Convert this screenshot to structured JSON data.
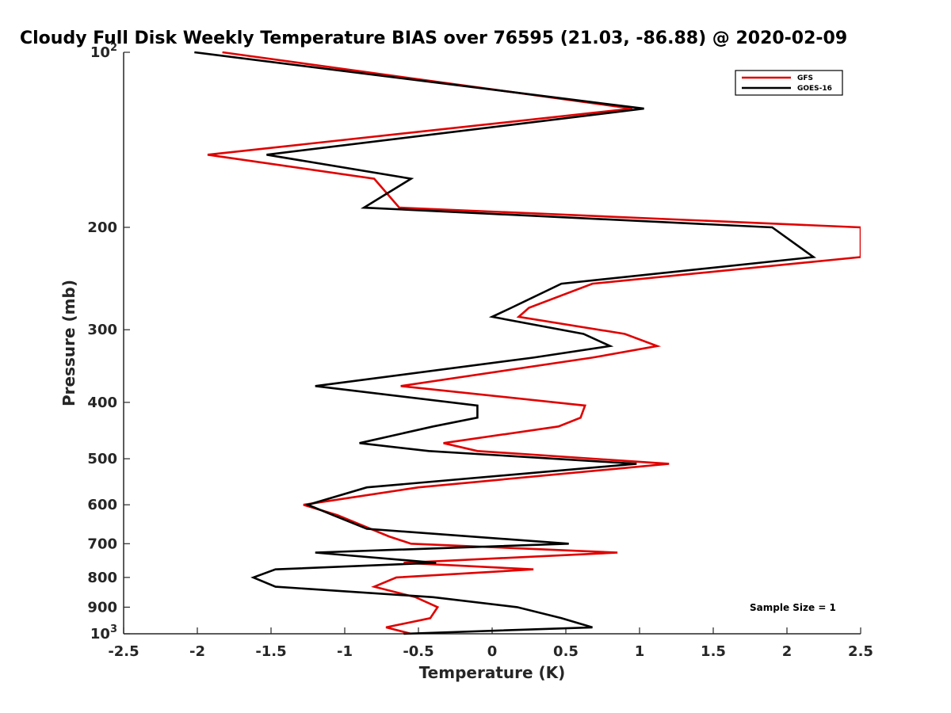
{
  "chart_data": {
    "type": "line",
    "title": "Cloudy Full Disk Weekly Temperature BIAS over 76595 (21.03, -86.88) @ 2020-02-09",
    "xlabel": "Temperature (K)",
    "ylabel": "Pressure (mb)",
    "xlim": [
      -2.5,
      2.5
    ],
    "ylim": [
      100,
      1000
    ],
    "yscale": "log",
    "y_reversed": true,
    "x_ticks": [
      -2.5,
      -2,
      -1.5,
      -1,
      -0.5,
      0,
      0.5,
      1,
      1.5,
      2,
      2.5
    ],
    "x_tick_labels": [
      "-2.5",
      "-2",
      "-1.5",
      "-1",
      "-0.5",
      "0",
      "0.5",
      "1",
      "1.5",
      "2",
      "2.5"
    ],
    "y_ticks": [
      100,
      200,
      300,
      400,
      500,
      600,
      700,
      800,
      900,
      1000
    ],
    "y_tick_labels": [
      "10^2",
      "200",
      "300",
      "400",
      "500",
      "600",
      "700",
      "800",
      "900",
      "10^3"
    ],
    "legend_position": "top-right",
    "annotation": "Sample Size = 1",
    "series": [
      {
        "name": "GFS",
        "color": "#e00000",
        "pressure": [
          100,
          125,
          150,
          165,
          185,
          200,
          225,
          250,
          275,
          285,
          305,
          320,
          335,
          375,
          405,
          425,
          440,
          470,
          485,
          510,
          560,
          600,
          625,
          680,
          700,
          725,
          755,
          775,
          800,
          830,
          865,
          900,
          940,
          975,
          1000
        ],
        "values": [
          -1.83,
          0.95,
          -1.93,
          -0.8,
          -0.63,
          2.5,
          2.5,
          0.68,
          0.25,
          0.18,
          0.9,
          1.12,
          0.68,
          -0.62,
          0.63,
          0.6,
          0.45,
          -0.33,
          -0.1,
          1.2,
          -0.5,
          -1.28,
          -1.05,
          -0.7,
          -0.55,
          0.85,
          -0.6,
          0.28,
          -0.65,
          -0.8,
          -0.52,
          -0.37,
          -0.42,
          -0.72,
          -0.55
        ]
      },
      {
        "name": "GOES-16",
        "color": "#000000",
        "pressure": [
          100,
          125,
          150,
          165,
          185,
          200,
          225,
          250,
          275,
          285,
          305,
          320,
          335,
          375,
          405,
          425,
          440,
          470,
          485,
          510,
          560,
          600,
          625,
          660,
          700,
          725,
          755,
          775,
          800,
          830,
          865,
          900,
          940,
          975,
          1000
        ],
        "values": [
          -2.02,
          1.03,
          -1.53,
          -0.55,
          -0.87,
          1.9,
          2.18,
          0.47,
          0.13,
          0.0,
          0.62,
          0.8,
          0.28,
          -1.2,
          -0.1,
          -0.1,
          -0.4,
          -0.9,
          -0.43,
          0.98,
          -0.85,
          -1.25,
          -1.08,
          -0.85,
          0.52,
          -1.2,
          -0.38,
          -1.47,
          -1.62,
          -1.47,
          -0.4,
          0.17,
          0.47,
          0.68,
          -0.6
        ]
      }
    ]
  }
}
